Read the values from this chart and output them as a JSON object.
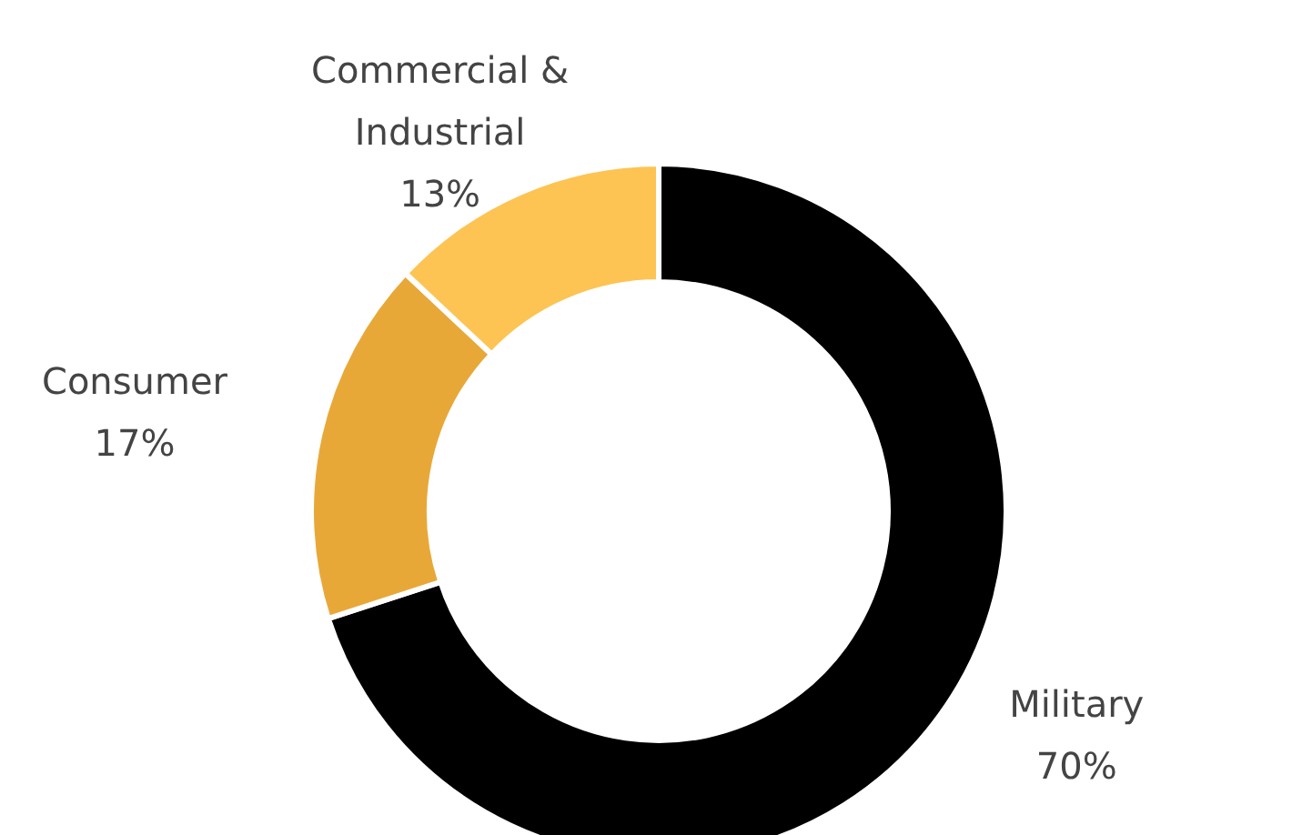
{
  "chart_data": {
    "type": "donut",
    "categories": [
      "Military",
      "Consumer",
      "Commercial & Industrial"
    ],
    "values": [
      70,
      17,
      13
    ],
    "value_labels": [
      "70%",
      "17%",
      "13%"
    ],
    "colors": [
      "#000000",
      "#e8a838",
      "#fdc453"
    ]
  }
}
